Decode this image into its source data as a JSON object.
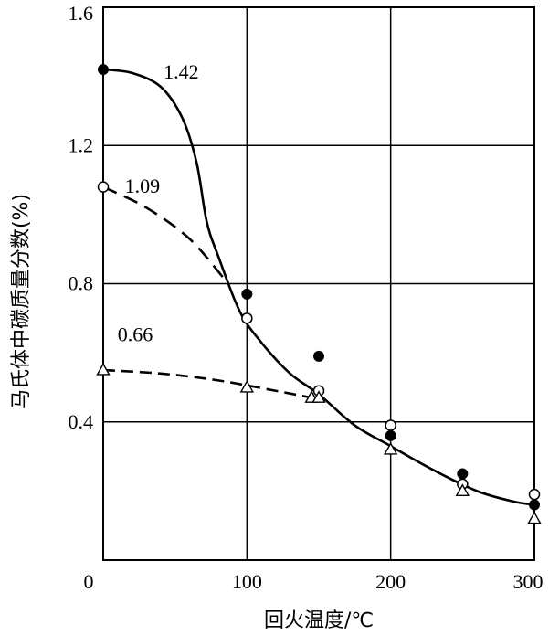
{
  "chart_data": {
    "type": "scatter",
    "title": "",
    "xlabel": "回火温度/℃",
    "ylabel": "马氏体中碳质量分数(%)",
    "xlim": [
      0,
      300
    ],
    "ylim": [
      0,
      1.6
    ],
    "x_ticks": [
      {
        "value": 0,
        "label": "0"
      },
      {
        "value": 100,
        "label": "100"
      },
      {
        "value": 200,
        "label": "200"
      },
      {
        "value": 300,
        "label": "300"
      }
    ],
    "y_ticks": [
      {
        "value": 0.4,
        "label": "0.4"
      },
      {
        "value": 0.8,
        "label": "0.8"
      },
      {
        "value": 1.2,
        "label": "1.2"
      },
      {
        "value": 1.6,
        "label": "1.6"
      }
    ],
    "grid": true,
    "series": [
      {
        "name": "1.42",
        "marker": "filled-circle",
        "line": "solid",
        "points": [
          [
            0,
            1.42
          ],
          [
            100,
            0.77
          ],
          [
            150,
            0.59
          ],
          [
            200,
            0.36
          ],
          [
            250,
            0.25
          ],
          [
            300,
            0.16
          ]
        ],
        "curve": [
          [
            0,
            1.42
          ],
          [
            20,
            1.41
          ],
          [
            40,
            1.37
          ],
          [
            55,
            1.28
          ],
          [
            65,
            1.15
          ],
          [
            72,
            0.98
          ],
          [
            80,
            0.88
          ],
          [
            95,
            0.72
          ],
          [
            110,
            0.63
          ],
          [
            130,
            0.54
          ],
          [
            150,
            0.48
          ],
          [
            175,
            0.39
          ],
          [
            200,
            0.33
          ],
          [
            230,
            0.26
          ],
          [
            260,
            0.2
          ],
          [
            285,
            0.17
          ],
          [
            300,
            0.16
          ]
        ]
      },
      {
        "name": "1.09",
        "marker": "open-circle",
        "line": "dashed",
        "points": [
          [
            0,
            1.08
          ],
          [
            100,
            0.7
          ],
          [
            150,
            0.49
          ],
          [
            200,
            0.39
          ],
          [
            250,
            0.22
          ],
          [
            300,
            0.19
          ]
        ],
        "curve": [
          [
            0,
            1.08
          ],
          [
            30,
            1.02
          ],
          [
            60,
            0.93
          ],
          [
            85,
            0.81
          ]
        ]
      },
      {
        "name": "0.66",
        "marker": "open-triangle",
        "line": "dashed",
        "points": [
          [
            0,
            0.55
          ],
          [
            100,
            0.5
          ],
          [
            145,
            0.47
          ],
          [
            150,
            0.47
          ],
          [
            200,
            0.32
          ],
          [
            250,
            0.2
          ],
          [
            300,
            0.12
          ]
        ],
        "curve": [
          [
            0,
            0.55
          ],
          [
            40,
            0.54
          ],
          [
            80,
            0.52
          ],
          [
            120,
            0.49
          ],
          [
            145,
            0.47
          ]
        ]
      }
    ],
    "annotations": [
      {
        "text": "1.42",
        "x": 42,
        "y": 1.42
      },
      {
        "text": "1.09",
        "x": 15,
        "y": 1.09
      },
      {
        "text": "0.66",
        "x": 10,
        "y": 0.66
      }
    ]
  }
}
